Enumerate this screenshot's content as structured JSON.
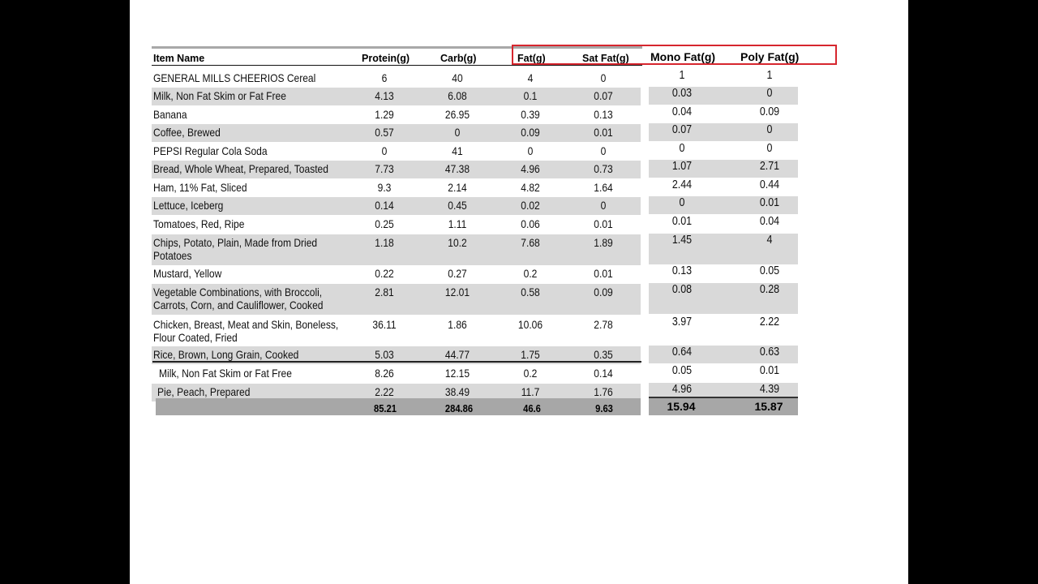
{
  "headers": {
    "item": "Item Name",
    "protein": "Protein(g)",
    "carb": "Carb(g)",
    "fat": "Fat(g)",
    "satfat": "Sat Fat(g)",
    "mono": "Mono Fat(g)",
    "poly": "Poly Fat(g)"
  },
  "rows": [
    {
      "name": "GENERAL MILLS CHEERIOS Cereal",
      "protein": "6",
      "carb": "40",
      "fat": "4",
      "satfat": "0",
      "mono": "1",
      "poly": "1"
    },
    {
      "name": "Milk, Non Fat Skim or Fat Free",
      "protein": "4.13",
      "carb": "6.08",
      "fat": "0.1",
      "satfat": "0.07",
      "mono": "0.03",
      "poly": "0"
    },
    {
      "name": "Banana",
      "protein": "1.29",
      "carb": "26.95",
      "fat": "0.39",
      "satfat": "0.13",
      "mono": "0.04",
      "poly": "0.09"
    },
    {
      "name": "Coffee, Brewed",
      "protein": "0.57",
      "carb": "0",
      "fat": "0.09",
      "satfat": "0.01",
      "mono": "0.07",
      "poly": "0"
    },
    {
      "name": "PEPSI Regular Cola Soda",
      "protein": "0",
      "carb": "41",
      "fat": "0",
      "satfat": "0",
      "mono": "0",
      "poly": "0"
    },
    {
      "name": "Bread, Whole Wheat, Prepared, Toasted",
      "protein": "7.73",
      "carb": "47.38",
      "fat": "4.96",
      "satfat": "0.73",
      "mono": "1.07",
      "poly": "2.71"
    },
    {
      "name": "Ham, 11% Fat, Sliced",
      "protein": "9.3",
      "carb": "2.14",
      "fat": "4.82",
      "satfat": "1.64",
      "mono": "2.44",
      "poly": "0.44"
    },
    {
      "name": "Lettuce, Iceberg",
      "protein": "0.14",
      "carb": "0.45",
      "fat": "0.02",
      "satfat": "0",
      "mono": "0",
      "poly": "0.01"
    },
    {
      "name": "Tomatoes, Red, Ripe",
      "protein": "0.25",
      "carb": "1.11",
      "fat": "0.06",
      "satfat": "0.01",
      "mono": "0.01",
      "poly": "0.04"
    },
    {
      "name": "Chips, Potato, Plain, Made from Dried",
      "name2": "Potatoes",
      "protein": "1.18",
      "carb": "10.2",
      "fat": "7.68",
      "satfat": "1.89",
      "mono": "1.45",
      "poly": "4"
    },
    {
      "name": "Mustard, Yellow",
      "protein": "0.22",
      "carb": "0.27",
      "fat": "0.2",
      "satfat": "0.01",
      "mono": "0.13",
      "poly": "0.05"
    },
    {
      "name": "Vegetable Combinations, with Broccoli,",
      "name2": "Carrots, Corn, and Cauliflower, Cooked",
      "protein": "2.81",
      "carb": "12.01",
      "fat": "0.58",
      "satfat": "0.09",
      "mono": "0.08",
      "poly": "0.28"
    },
    {
      "name": "Chicken, Breast, Meat and Skin, Boneless,",
      "name2": "Flour Coated, Fried",
      "protein": "36.11",
      "carb": "1.86",
      "fat": "10.06",
      "satfat": "2.78",
      "mono": "3.97",
      "poly": "2.22"
    },
    {
      "name": "Rice, Brown, Long Grain, Cooked",
      "protein": "5.03",
      "carb": "44.77",
      "fat": "1.75",
      "satfat": "0.35",
      "mono": "0.64",
      "poly": "0.63"
    },
    {
      "name": "Milk, Non Fat Skim or Fat Free",
      "protein": "8.26",
      "carb": "12.15",
      "fat": "0.2",
      "satfat": "0.14",
      "mono": "0.05",
      "poly": "0.01"
    },
    {
      "name": "Pie, Peach, Prepared",
      "protein": "2.22",
      "carb": "38.49",
      "fat": "11.7",
      "satfat": "1.76",
      "mono": "4.96",
      "poly": "4.39"
    }
  ],
  "totals": {
    "protein": "85.21",
    "carb": "284.86",
    "fat": "46.6",
    "satfat": "9.63",
    "mono": "15.94",
    "poly": "15.87"
  }
}
